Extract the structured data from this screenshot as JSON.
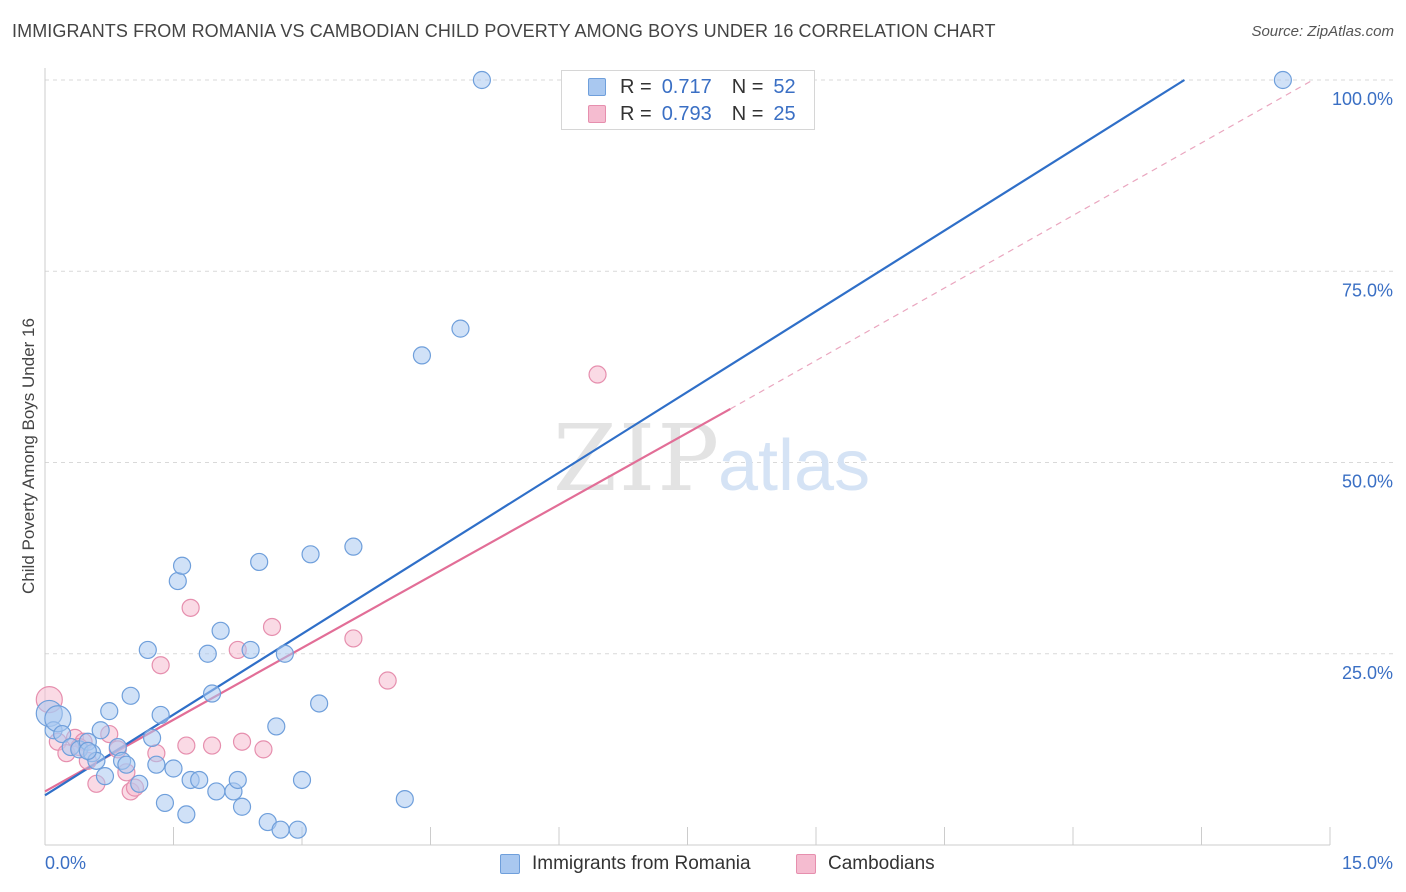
{
  "title": "IMMIGRANTS FROM ROMANIA VS CAMBODIAN CHILD POVERTY AMONG BOYS UNDER 16 CORRELATION CHART",
  "source": "Source: ZipAtlas.com",
  "watermark": {
    "zip": "ZIP",
    "atlas": "atlas"
  },
  "legend": {
    "r_label": "R =",
    "n_label": "N =",
    "rows": [
      {
        "r": "0.717",
        "n": "52"
      },
      {
        "r": "0.793",
        "n": "25"
      }
    ]
  },
  "bottom_legend": [
    "Immigrants from Romania",
    "Cambodians"
  ],
  "colors": {
    "blue_fill": "#a9c8f0",
    "blue_stroke": "#6f9fdb",
    "blue_line": "#2f6fc8",
    "pink_fill": "#f5bcd0",
    "pink_stroke": "#e68fae",
    "pink_line": "#e26e97",
    "axis_text": "#3a6fc4",
    "grid": "#d9d9d9"
  },
  "chart_data": {
    "type": "scatter",
    "xlabel": "",
    "ylabel": "Child Poverty Among Boys Under 16",
    "xlim": [
      0,
      15
    ],
    "ylim": [
      0,
      100
    ],
    "x_tick_labels": [
      "0.0%",
      "15.0%"
    ],
    "y_tick_labels": [
      "25.0%",
      "50.0%",
      "75.0%",
      "100.0%"
    ],
    "y_ticks": [
      25,
      50,
      75,
      100
    ],
    "grid": true,
    "legend_position": "top-center",
    "series": [
      {
        "name": "Immigrants from Romania",
        "r": 0.717,
        "n": 52,
        "trend": {
          "x": [
            0,
            13.3
          ],
          "y": [
            6.5,
            100
          ]
        },
        "points": [
          [
            0.05,
            17.2
          ],
          [
            0.1,
            15.0
          ],
          [
            0.15,
            16.5
          ],
          [
            0.2,
            14.5
          ],
          [
            0.3,
            12.8
          ],
          [
            0.4,
            12.5
          ],
          [
            0.5,
            13.5
          ],
          [
            0.55,
            12.0
          ],
          [
            0.6,
            11.0
          ],
          [
            0.65,
            15.0
          ],
          [
            0.7,
            9.0
          ],
          [
            0.75,
            17.5
          ],
          [
            0.85,
            12.8
          ],
          [
            0.9,
            11.0
          ],
          [
            0.95,
            10.5
          ],
          [
            1.0,
            19.5
          ],
          [
            1.1,
            8.0
          ],
          [
            1.2,
            25.5
          ],
          [
            1.25,
            14.0
          ],
          [
            1.3,
            10.5
          ],
          [
            1.35,
            17.0
          ],
          [
            1.4,
            5.5
          ],
          [
            1.5,
            10.0
          ],
          [
            1.55,
            34.5
          ],
          [
            1.6,
            36.5
          ],
          [
            1.65,
            4.0
          ],
          [
            1.7,
            8.5
          ],
          [
            1.8,
            8.5
          ],
          [
            1.9,
            25.0
          ],
          [
            1.95,
            19.8
          ],
          [
            2.0,
            7.0
          ],
          [
            2.05,
            28.0
          ],
          [
            2.2,
            7.0
          ],
          [
            2.25,
            8.5
          ],
          [
            2.3,
            5.0
          ],
          [
            2.4,
            25.5
          ],
          [
            2.5,
            37.0
          ],
          [
            2.6,
            3.0
          ],
          [
            2.7,
            15.5
          ],
          [
            2.75,
            2.0
          ],
          [
            2.8,
            25.0
          ],
          [
            2.95,
            2.0
          ],
          [
            3.0,
            8.5
          ],
          [
            3.1,
            38.0
          ],
          [
            3.2,
            18.5
          ],
          [
            3.6,
            39.0
          ],
          [
            4.2,
            6.0
          ],
          [
            4.4,
            64.0
          ],
          [
            4.85,
            67.5
          ],
          [
            5.1,
            100.0
          ],
          [
            14.45,
            100.0
          ],
          [
            0.5,
            12.3
          ]
        ]
      },
      {
        "name": "Cambodians",
        "r": 0.793,
        "n": 25,
        "trend": {
          "x": [
            0,
            8.0
          ],
          "y": [
            7.0,
            57.0
          ]
        },
        "trend_ext": {
          "x": [
            8.0,
            14.8
          ],
          "y": [
            57.0,
            100.0
          ]
        },
        "points": [
          [
            0.05,
            19.0
          ],
          [
            0.15,
            13.5
          ],
          [
            0.25,
            12.0
          ],
          [
            0.35,
            14.0
          ],
          [
            0.45,
            13.5
          ],
          [
            0.5,
            11.0
          ],
          [
            0.6,
            8.0
          ],
          [
            0.75,
            14.5
          ],
          [
            0.85,
            12.5
          ],
          [
            0.95,
            9.5
          ],
          [
            1.0,
            7.0
          ],
          [
            1.05,
            7.5
          ],
          [
            1.3,
            12.0
          ],
          [
            1.35,
            23.5
          ],
          [
            1.65,
            13.0
          ],
          [
            1.7,
            31.0
          ],
          [
            1.95,
            13.0
          ],
          [
            2.25,
            25.5
          ],
          [
            2.3,
            13.5
          ],
          [
            2.55,
            12.5
          ],
          [
            2.65,
            28.5
          ],
          [
            3.6,
            27.0
          ],
          [
            4.0,
            21.5
          ],
          [
            6.45,
            61.5
          ],
          [
            0.4,
            12.8
          ]
        ]
      }
    ]
  }
}
